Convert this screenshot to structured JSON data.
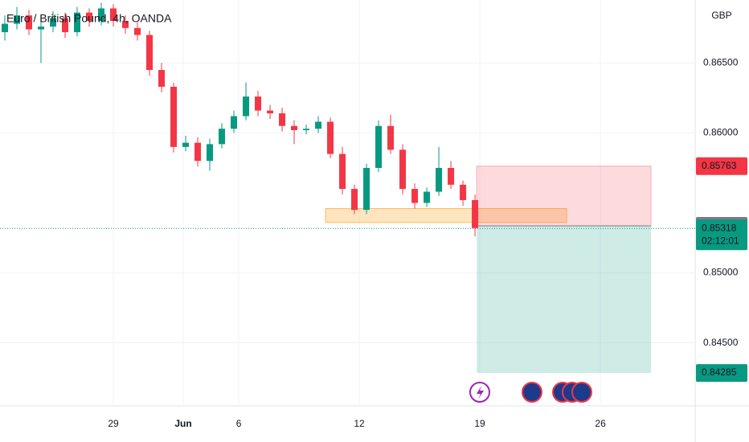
{
  "chart_data": {
    "type": "candlestick",
    "title": "Euro / British Pound, 4h, OANDA",
    "currency": "GBP",
    "x": [
      -4.5,
      -4.0,
      -3.5,
      -3.0,
      -2.5,
      -2.0,
      -1.5,
      -1.0,
      -0.5,
      0,
      0.5,
      1.0,
      1.5,
      2.0,
      2.5,
      3.0,
      3.5,
      4.0,
      4.5,
      5.0,
      5.5,
      6.0,
      6.5,
      7.0,
      7.5,
      8.0,
      8.5,
      9.0,
      9.5,
      10.0,
      10.5,
      11.0,
      11.5,
      12.0,
      12.5,
      13.0,
      13.5,
      14.0,
      14.5,
      15.0
    ],
    "open": [
      0.8672,
      0.8678,
      0.8684,
      0.8674,
      0.8676,
      0.8682,
      0.8672,
      0.8686,
      0.868,
      0.8689,
      0.868,
      0.8675,
      0.867,
      0.8645,
      0.8633,
      0.859,
      0.8593,
      0.858,
      0.8592,
      0.8603,
      0.8612,
      0.8626,
      0.8616,
      0.8614,
      0.8605,
      0.8602,
      0.8603,
      0.8608,
      0.8585,
      0.856,
      0.8545,
      0.8575,
      0.8605,
      0.8588,
      0.856,
      0.855,
      0.8558,
      0.8575,
      0.8563,
      0.8552
    ],
    "high": [
      0.8684,
      0.869,
      0.8688,
      0.8681,
      0.8687,
      0.8686,
      0.869,
      0.8689,
      0.8693,
      0.8692,
      0.8684,
      0.8679,
      0.8673,
      0.865,
      0.8636,
      0.8598,
      0.8597,
      0.8596,
      0.8607,
      0.8616,
      0.8636,
      0.863,
      0.862,
      0.8618,
      0.8609,
      0.8606,
      0.8612,
      0.8611,
      0.859,
      0.8563,
      0.8578,
      0.8609,
      0.8613,
      0.8592,
      0.8564,
      0.8561,
      0.859,
      0.858,
      0.8566,
      0.8556
    ],
    "low": [
      0.8666,
      0.8674,
      0.867,
      0.865,
      0.8672,
      0.8668,
      0.8669,
      0.8676,
      0.8677,
      0.8676,
      0.8671,
      0.8666,
      0.8641,
      0.8629,
      0.8586,
      0.8587,
      0.8576,
      0.8573,
      0.8589,
      0.86,
      0.8609,
      0.8612,
      0.861,
      0.8601,
      0.8592,
      0.8599,
      0.86,
      0.8582,
      0.8556,
      0.8542,
      0.8542,
      0.8572,
      0.8585,
      0.8556,
      0.8546,
      0.8547,
      0.8555,
      0.856,
      0.8548,
      0.8526
    ],
    "close": [
      0.8678,
      0.8684,
      0.8674,
      0.8676,
      0.8682,
      0.8672,
      0.8686,
      0.868,
      0.8689,
      0.868,
      0.8675,
      0.867,
      0.8645,
      0.8633,
      0.859,
      0.8593,
      0.858,
      0.8592,
      0.8603,
      0.8612,
      0.8626,
      0.8616,
      0.8614,
      0.8605,
      0.8602,
      0.8603,
      0.8608,
      0.8585,
      0.856,
      0.8545,
      0.8575,
      0.8605,
      0.8588,
      0.856,
      0.855,
      0.8558,
      0.8575,
      0.8563,
      0.8552,
      0.8532
    ],
    "up_color": "#089981",
    "down_color": "#f23645",
    "xlim": [
      -4.7,
      24.13
    ],
    "xticks": [
      {
        "value": 0,
        "label": "29"
      },
      {
        "value": 2.9,
        "label": "Jun"
      },
      {
        "value": 5.2,
        "label": "6"
      },
      {
        "value": 10.2,
        "label": "12"
      },
      {
        "value": 15.2,
        "label": "19"
      },
      {
        "value": 20.2,
        "label": "26"
      }
    ],
    "ylim": [
      0.8405,
      0.8695
    ],
    "yticks": [
      {
        "value": 0.845,
        "label": "0.84500"
      },
      {
        "value": 0.85,
        "label": "0.85000"
      },
      {
        "value": 0.86,
        "label": "0.86000"
      },
      {
        "value": 0.865,
        "label": "0.86500"
      }
    ],
    "grid": true,
    "last_price": 0.85318,
    "countdown": "02:12:01",
    "zone": {
      "low": 0.8536,
      "high": 0.8546,
      "x_start": 8.8,
      "x_end": 18.8
    },
    "position": {
      "entry": 0.85336,
      "stop": 0.85763,
      "target": 0.84285,
      "x_start": 15.07,
      "x_end": 22.3
    }
  }
}
